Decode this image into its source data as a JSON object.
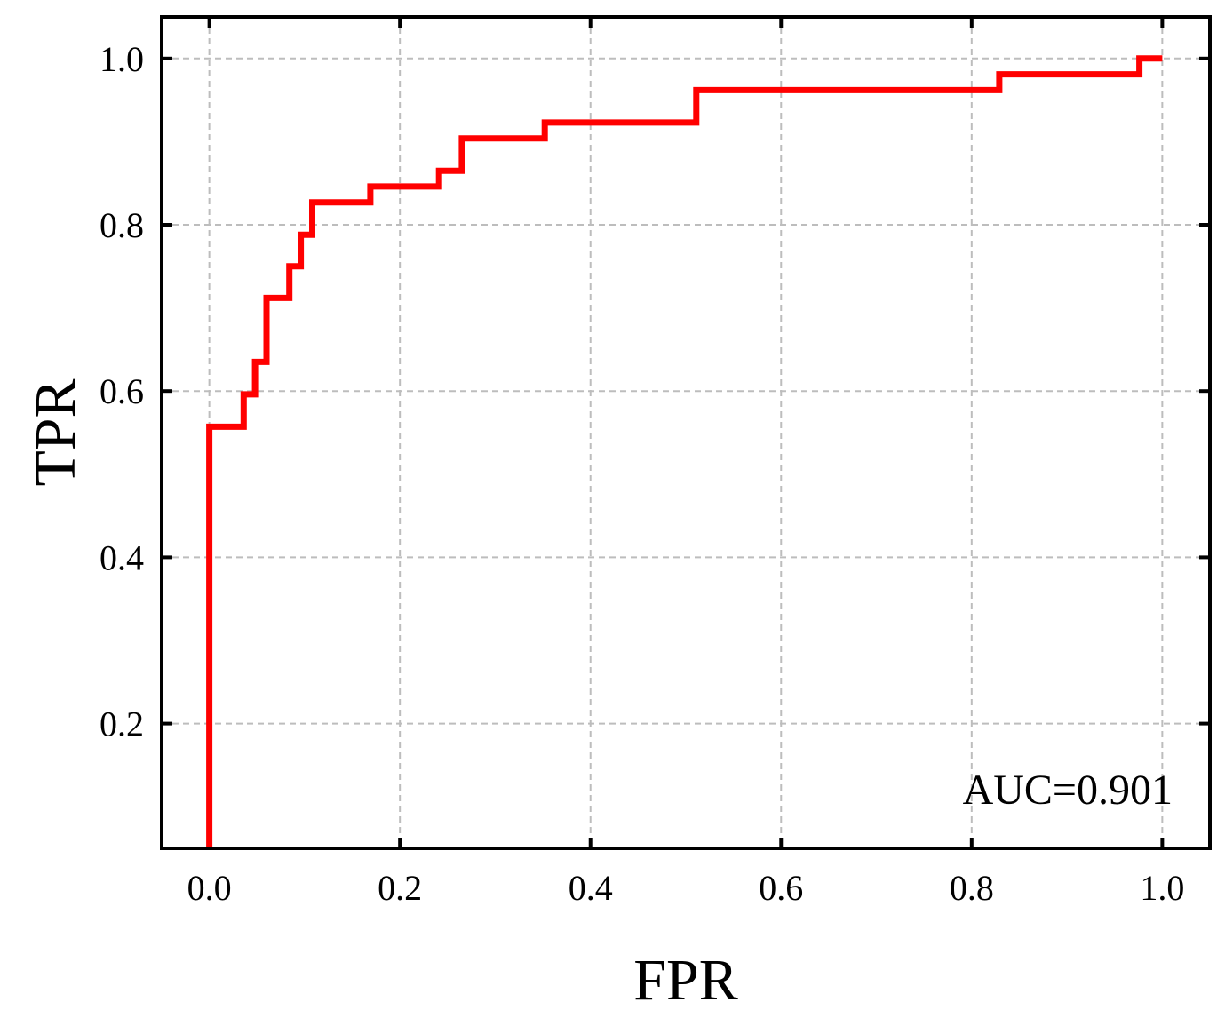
{
  "chart_data": {
    "type": "line",
    "xlabel": "FPR",
    "ylabel": "TPR",
    "xlim": [
      -0.05,
      1.05
    ],
    "ylim": [
      0.05,
      1.05
    ],
    "x_ticks": [
      0.0,
      0.2,
      0.4,
      0.6,
      0.8,
      1.0
    ],
    "x_tick_labels": [
      "0.0",
      "0.2",
      "0.4",
      "0.6",
      "0.8",
      "1.0"
    ],
    "y_ticks": [
      0.2,
      0.4,
      0.6,
      0.8,
      1.0
    ],
    "y_tick_labels": [
      "0.2",
      "0.4",
      "0.6",
      "0.8",
      "1.0"
    ],
    "grid": true,
    "line_color": "#ff0000",
    "annotation": "AUC=0.901",
    "annotation_position": "bottom-right",
    "series": [
      {
        "x": [
          0.0,
          0.0,
          0.0,
          0.036,
          0.036,
          0.048,
          0.048,
          0.06,
          0.06,
          0.084,
          0.084,
          0.096,
          0.096,
          0.108,
          0.108,
          0.169,
          0.169,
          0.241,
          0.241,
          0.265,
          0.265,
          0.352,
          0.352,
          0.511,
          0.511,
          0.829,
          0.829,
          0.976,
          0.976,
          1.0
        ],
        "y": [
          0.05,
          0.557,
          0.557,
          0.557,
          0.596,
          0.596,
          0.635,
          0.635,
          0.712,
          0.712,
          0.75,
          0.75,
          0.788,
          0.788,
          0.827,
          0.827,
          0.846,
          0.846,
          0.865,
          0.865,
          0.904,
          0.904,
          0.923,
          0.923,
          0.962,
          0.962,
          0.981,
          0.981,
          1.0,
          1.0
        ]
      }
    ]
  }
}
